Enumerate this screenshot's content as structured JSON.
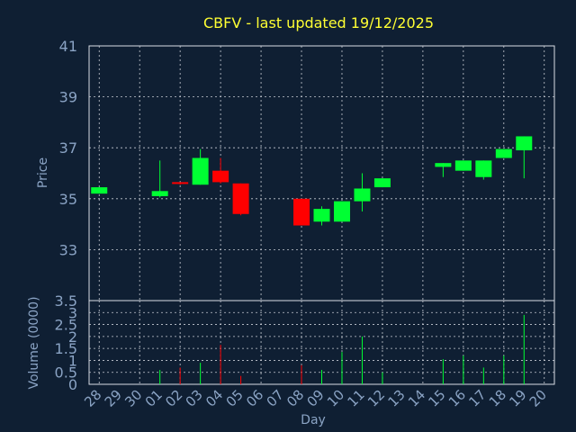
{
  "chart_data": {
    "type": "candlestick",
    "title": "CBFV - last updated 19/12/2025",
    "xlabel": "Day",
    "price_panel": {
      "ylabel": "Price",
      "ylim": [
        31,
        41
      ],
      "yticks": [
        33,
        35,
        37,
        39,
        41
      ],
      "grid": true
    },
    "volume_panel": {
      "ylabel": "Volume (0000)",
      "ylim": [
        0,
        3.5
      ],
      "yticks": [
        "0",
        "0.5",
        "1",
        "1.5",
        "2",
        "2.5",
        "3",
        "3.5"
      ],
      "grid": true
    },
    "x_tick_labels": [
      "28",
      "29",
      "30",
      "01",
      "02",
      "03",
      "04",
      "05",
      "06",
      "07",
      "08",
      "09",
      "10",
      "11",
      "12",
      "13",
      "14",
      "15",
      "16",
      "17",
      "18",
      "19",
      "20"
    ],
    "candles": [
      {
        "day": "28",
        "open": 35.2,
        "close": 35.45,
        "high": 35.45,
        "low": 35.2,
        "volume": 0
      },
      {
        "day": "01",
        "open": 35.1,
        "close": 35.3,
        "high": 36.5,
        "low": 35.05,
        "volume": 0.6
      },
      {
        "day": "02",
        "open": 35.65,
        "close": 35.6,
        "high": 35.65,
        "low": 35.55,
        "volume": 0.7
      },
      {
        "day": "03",
        "open": 35.55,
        "close": 36.6,
        "high": 36.95,
        "low": 35.55,
        "volume": 0.9
      },
      {
        "day": "04",
        "open": 36.1,
        "close": 35.65,
        "high": 36.6,
        "low": 35.6,
        "volume": 1.65
      },
      {
        "day": "05",
        "open": 35.6,
        "close": 34.4,
        "high": 35.6,
        "low": 34.35,
        "volume": 0.35
      },
      {
        "day": "08",
        "open": 35.0,
        "close": 33.95,
        "high": 35.0,
        "low": 33.95,
        "volume": 0.8
      },
      {
        "day": "09",
        "open": 34.1,
        "close": 34.6,
        "high": 34.7,
        "low": 33.95,
        "volume": 0.6
      },
      {
        "day": "10",
        "open": 34.1,
        "close": 34.9,
        "high": 34.9,
        "low": 34.1,
        "volume": 1.35
      },
      {
        "day": "11",
        "open": 34.9,
        "close": 35.4,
        "high": 36.0,
        "low": 34.5,
        "volume": 2.0
      },
      {
        "day": "12",
        "open": 35.45,
        "close": 35.8,
        "high": 35.8,
        "low": 35.45,
        "volume": 0.5
      },
      {
        "day": "15",
        "open": 36.25,
        "close": 36.4,
        "high": 36.4,
        "low": 35.85,
        "volume": 1.05
      },
      {
        "day": "16",
        "open": 36.1,
        "close": 36.5,
        "high": 36.5,
        "low": 36.1,
        "volume": 1.2
      },
      {
        "day": "17",
        "open": 35.85,
        "close": 36.5,
        "high": 36.5,
        "low": 35.75,
        "volume": 0.7
      },
      {
        "day": "18",
        "open": 36.6,
        "close": 36.95,
        "high": 36.95,
        "low": 36.6,
        "volume": 1.2
      },
      {
        "day": "19",
        "open": 36.9,
        "close": 37.45,
        "high": 37.45,
        "low": 35.8,
        "volume": 2.9
      }
    ],
    "colors": {
      "background": "#0f1f33",
      "frame": "#d8dde6",
      "grid": "#c8ccd4",
      "up": "#00ff33",
      "down": "#ff0000",
      "axis_text": "#8aa3c4",
      "title_text": "#ffff33"
    }
  }
}
